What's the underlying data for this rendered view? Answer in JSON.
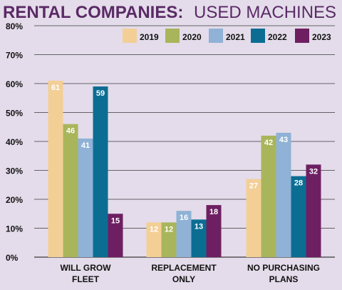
{
  "chart_data": {
    "type": "bar",
    "title_bold": "RENTAL COMPANIES:",
    "title_light": "USED MACHINES",
    "categories": [
      [
        "WILL GROW",
        "FLEET"
      ],
      [
        "REPLACEMENT",
        "ONLY"
      ],
      [
        "NO PURCHASING",
        "PLANS"
      ]
    ],
    "series": [
      {
        "name": "2019",
        "color": "#f3cf96",
        "values": [
          61,
          12,
          27
        ]
      },
      {
        "name": "2020",
        "color": "#a9b55b",
        "values": [
          46,
          12,
          42
        ]
      },
      {
        "name": "2021",
        "color": "#8fb2d6",
        "values": [
          41,
          16,
          43
        ]
      },
      {
        "name": "2022",
        "color": "#0c6d93",
        "values": [
          59,
          13,
          28
        ]
      },
      {
        "name": "2023",
        "color": "#6e1f62",
        "values": [
          15,
          18,
          32
        ]
      }
    ],
    "ylim": [
      0,
      80
    ],
    "yticks": [
      "0%",
      "10%",
      "20%",
      "30%",
      "40%",
      "50%",
      "60%",
      "70%",
      "80%"
    ],
    "grid": true,
    "legend_position": "top-right",
    "background_color": "#e4dcea",
    "title_color": "#5a2a66"
  }
}
